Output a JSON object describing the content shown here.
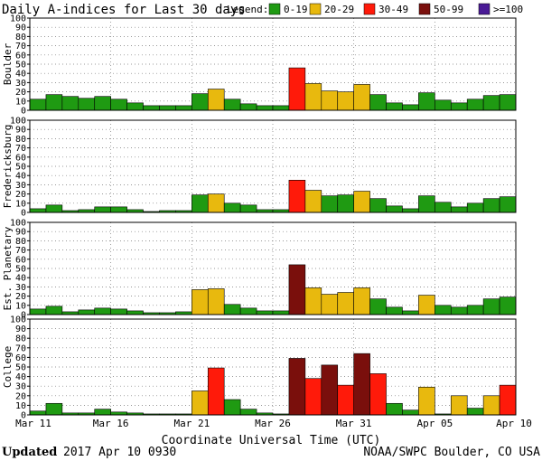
{
  "title": "Daily A-indices for Last 30 days",
  "legend": {
    "title": "Legend:",
    "items": [
      {
        "label": "0-19",
        "color": "#1f9a12"
      },
      {
        "label": "20-29",
        "color": "#e8b90e"
      },
      {
        "label": "30-49",
        "color": "#ff1a0a"
      },
      {
        "label": "50-99",
        "color": "#7a0f0c"
      },
      {
        "label": ">=100",
        "color": "#4a1a96"
      }
    ]
  },
  "chart_data": {
    "type": "bar",
    "x_ticks": [
      {
        "label": "Mar 11",
        "index": 0
      },
      {
        "label": "Mar 16",
        "index": 5
      },
      {
        "label": "Mar 21",
        "index": 10
      },
      {
        "label": "Mar 26",
        "index": 15
      },
      {
        "label": "Mar 31",
        "index": 20
      },
      {
        "label": "Apr 05",
        "index": 25
      },
      {
        "label": "Apr 10",
        "index": 30
      }
    ],
    "xlabel": "Coordinate Universal Time (UTC)",
    "ylim": [
      0,
      100
    ],
    "y_ticks": [
      0,
      10,
      20,
      30,
      40,
      50,
      60,
      70,
      80,
      90,
      100
    ],
    "gridlines": "dotted",
    "series": [
      {
        "name": "Boulder",
        "values": [
          12,
          17,
          15,
          13,
          15,
          12,
          8,
          5,
          5,
          5,
          18,
          23,
          12,
          7,
          5,
          5,
          46,
          29,
          21,
          20,
          28,
          17,
          8,
          6,
          19,
          11,
          8,
          12,
          16,
          17
        ]
      },
      {
        "name": "Fredericksburg",
        "values": [
          4,
          8,
          2,
          3,
          6,
          6,
          3,
          1,
          2,
          2,
          19,
          20,
          10,
          8,
          3,
          3,
          35,
          24,
          18,
          19,
          23,
          15,
          7,
          4,
          18,
          11,
          6,
          10,
          15,
          17
        ]
      },
      {
        "name": "Est. Planetary",
        "values": [
          6,
          9,
          3,
          5,
          7,
          6,
          4,
          2,
          2,
          3,
          27,
          28,
          11,
          7,
          4,
          4,
          54,
          29,
          22,
          24,
          29,
          17,
          8,
          4,
          21,
          10,
          8,
          10,
          17,
          19
        ]
      },
      {
        "name": "College",
        "values": [
          4,
          12,
          2,
          2,
          6,
          3,
          2,
          1,
          1,
          1,
          25,
          49,
          16,
          6,
          2,
          1,
          59,
          38,
          52,
          31,
          64,
          43,
          12,
          5,
          29,
          1,
          20,
          7,
          20,
          31
        ]
      }
    ]
  },
  "footer": {
    "updated_label": "Updated",
    "updated_value": "2017 Apr 10 0930",
    "source": "NOAA/SWPC Boulder, CO USA"
  }
}
